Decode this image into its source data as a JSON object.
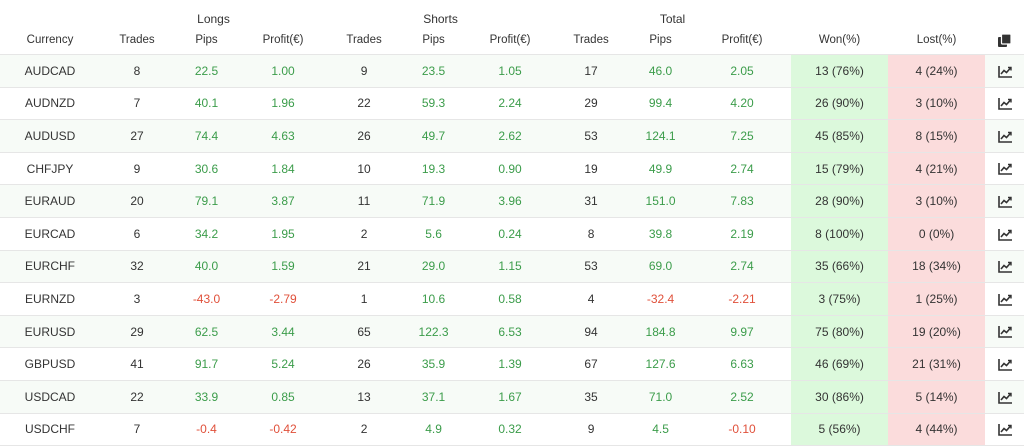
{
  "header": {
    "groups": {
      "longs": "Longs",
      "shorts": "Shorts",
      "total": "Total"
    },
    "columns": [
      "Currency",
      "Trades",
      "Pips",
      "Profit(€)",
      "Trades",
      "Pips",
      "Profit(€)",
      "Trades",
      "Pips",
      "Profit(€)",
      "Won(%)",
      "Lost(%)"
    ],
    "copy_icon": "copy-icon"
  },
  "colors": {
    "positive": "#3b9c4a",
    "negative": "#e0503a",
    "won_bg": "#dcf9dc",
    "lost_bg": "#fbdcdc"
  },
  "rows": [
    {
      "currency": "AUDCAD",
      "long_trades": "8",
      "long_pips": "22.5",
      "long_profit": "1.00",
      "short_trades": "9",
      "short_pips": "23.5",
      "short_profit": "1.05",
      "total_trades": "17",
      "total_pips": "46.0",
      "total_profit": "2.05",
      "won": "13 (76%)",
      "lost": "4 (24%)"
    },
    {
      "currency": "AUDNZD",
      "long_trades": "7",
      "long_pips": "40.1",
      "long_profit": "1.96",
      "short_trades": "22",
      "short_pips": "59.3",
      "short_profit": "2.24",
      "total_trades": "29",
      "total_pips": "99.4",
      "total_profit": "4.20",
      "won": "26 (90%)",
      "lost": "3 (10%)"
    },
    {
      "currency": "AUDUSD",
      "long_trades": "27",
      "long_pips": "74.4",
      "long_profit": "4.63",
      "short_trades": "26",
      "short_pips": "49.7",
      "short_profit": "2.62",
      "total_trades": "53",
      "total_pips": "124.1",
      "total_profit": "7.25",
      "won": "45 (85%)",
      "lost": "8 (15%)"
    },
    {
      "currency": "CHFJPY",
      "long_trades": "9",
      "long_pips": "30.6",
      "long_profit": "1.84",
      "short_trades": "10",
      "short_pips": "19.3",
      "short_profit": "0.90",
      "total_trades": "19",
      "total_pips": "49.9",
      "total_profit": "2.74",
      "won": "15 (79%)",
      "lost": "4 (21%)"
    },
    {
      "currency": "EURAUD",
      "long_trades": "20",
      "long_pips": "79.1",
      "long_profit": "3.87",
      "short_trades": "11",
      "short_pips": "71.9",
      "short_profit": "3.96",
      "total_trades": "31",
      "total_pips": "151.0",
      "total_profit": "7.83",
      "won": "28 (90%)",
      "lost": "3 (10%)"
    },
    {
      "currency": "EURCAD",
      "long_trades": "6",
      "long_pips": "34.2",
      "long_profit": "1.95",
      "short_trades": "2",
      "short_pips": "5.6",
      "short_profit": "0.24",
      "total_trades": "8",
      "total_pips": "39.8",
      "total_profit": "2.19",
      "won": "8 (100%)",
      "lost": "0 (0%)"
    },
    {
      "currency": "EURCHF",
      "long_trades": "32",
      "long_pips": "40.0",
      "long_profit": "1.59",
      "short_trades": "21",
      "short_pips": "29.0",
      "short_profit": "1.15",
      "total_trades": "53",
      "total_pips": "69.0",
      "total_profit": "2.74",
      "won": "35 (66%)",
      "lost": "18 (34%)"
    },
    {
      "currency": "EURNZD",
      "long_trades": "3",
      "long_pips": "-43.0",
      "long_profit": "-2.79",
      "short_trades": "1",
      "short_pips": "10.6",
      "short_profit": "0.58",
      "total_trades": "4",
      "total_pips": "-32.4",
      "total_profit": "-2.21",
      "won": "3 (75%)",
      "lost": "1 (25%)"
    },
    {
      "currency": "EURUSD",
      "long_trades": "29",
      "long_pips": "62.5",
      "long_profit": "3.44",
      "short_trades": "65",
      "short_pips": "122.3",
      "short_profit": "6.53",
      "total_trades": "94",
      "total_pips": "184.8",
      "total_profit": "9.97",
      "won": "75 (80%)",
      "lost": "19 (20%)"
    },
    {
      "currency": "GBPUSD",
      "long_trades": "41",
      "long_pips": "91.7",
      "long_profit": "5.24",
      "short_trades": "26",
      "short_pips": "35.9",
      "short_profit": "1.39",
      "total_trades": "67",
      "total_pips": "127.6",
      "total_profit": "6.63",
      "won": "46 (69%)",
      "lost": "21 (31%)"
    },
    {
      "currency": "USDCAD",
      "long_trades": "22",
      "long_pips": "33.9",
      "long_profit": "0.85",
      "short_trades": "13",
      "short_pips": "37.1",
      "short_profit": "1.67",
      "total_trades": "35",
      "total_pips": "71.0",
      "total_profit": "2.52",
      "won": "30 (86%)",
      "lost": "5 (14%)"
    },
    {
      "currency": "USDCHF",
      "long_trades": "7",
      "long_pips": "-0.4",
      "long_profit": "-0.42",
      "short_trades": "2",
      "short_pips": "4.9",
      "short_profit": "0.32",
      "total_trades": "9",
      "total_pips": "4.5",
      "total_profit": "-0.10",
      "won": "5 (56%)",
      "lost": "4 (44%)"
    }
  ],
  "row_icon": "line-chart-icon"
}
